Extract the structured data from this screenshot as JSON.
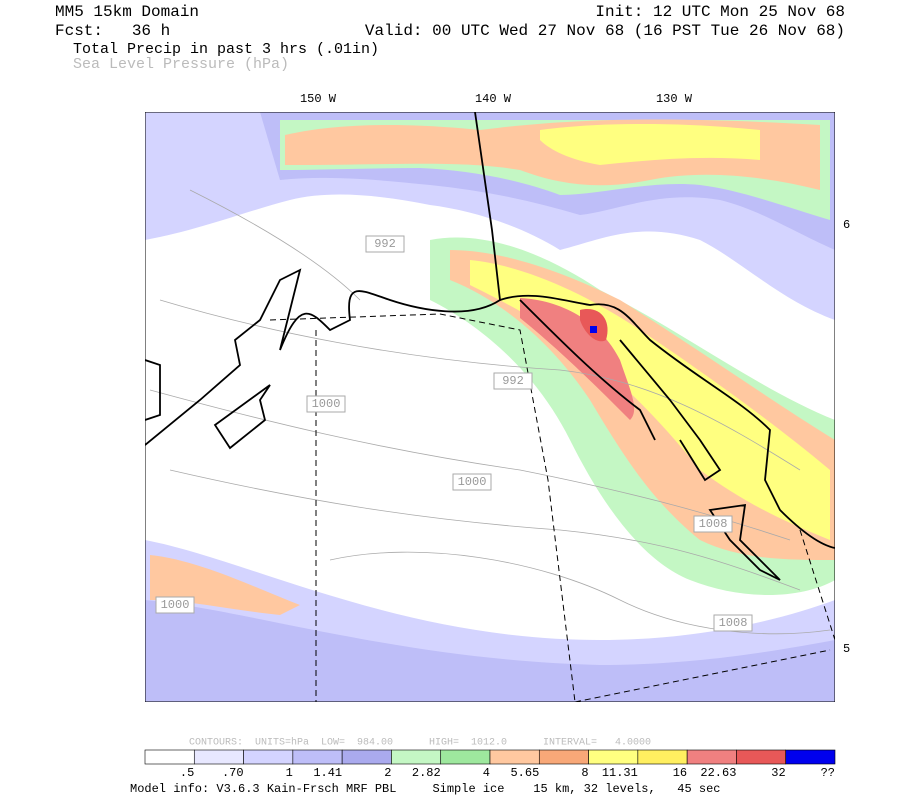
{
  "header": {
    "title": "MM5 15km Domain",
    "init": "Init: 12 UTC Mon 25 Nov 68",
    "forecast": "Fcst:   36 h",
    "valid": "Valid: 00 UTC Wed 27 Nov 68 (16 PST Tue 26 Nov 68)",
    "field_1": "Total Precip in past 3 hrs (.01in)",
    "field_2": "Sea Level Pressure (hPa)"
  },
  "map": {
    "longitude_labels": [
      "150 W",
      "140 W",
      "130 W"
    ],
    "latitude_labels": [
      "6",
      "5"
    ],
    "contour_labels": [
      "992",
      "992",
      "1000",
      "1000",
      "1000",
      "1008",
      "1008"
    ]
  },
  "footer": {
    "contours_info": "CONTOURS:  UNITS=hPa  LOW=  984.00      HIGH=  1012.0      INTERVAL=   4.0000",
    "colorbar": {
      "labels": [
        ".5",
        ".70",
        "1",
        "1.41",
        "2",
        "2.82",
        "4",
        "5.65",
        "8",
        "11.31",
        "16",
        "22.63",
        "32",
        "??"
      ],
      "colors": [
        "#ffffff",
        "#e8e8ff",
        "#d4d4ff",
        "#bebef8",
        "#aaaaee",
        "#c4f7c4",
        "#9ee89e",
        "#ffc8a0",
        "#f8a878",
        "#ffff80",
        "#ffef60",
        "#f08080",
        "#e85858",
        "#0000ee"
      ]
    },
    "model_info": "Model info: V3.6.3 Kain-Frsch MRF PBL     Simple ice    15 km, 32 levels,   45 sec"
  }
}
